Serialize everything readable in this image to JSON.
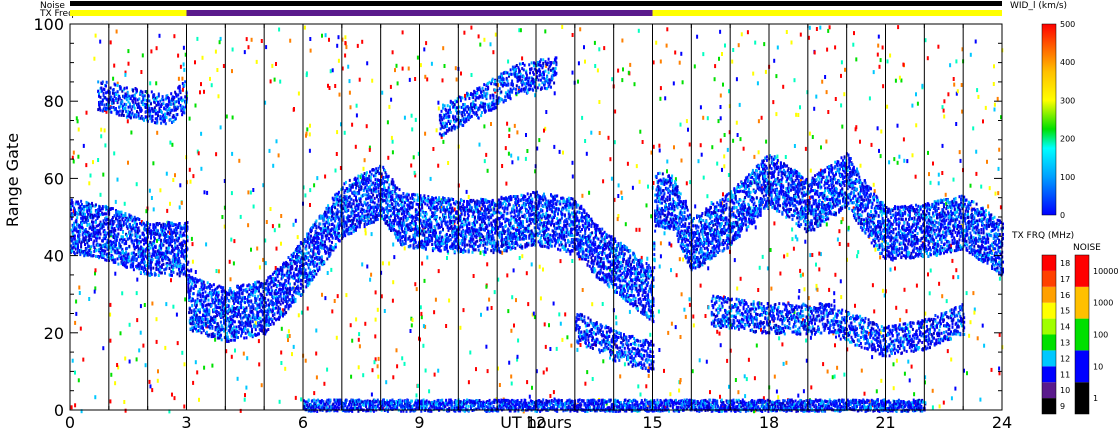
{
  "chart_data": {
    "type": "heatmap",
    "xlabel": "UT hours",
    "ylabel": "Range Gate",
    "xlim": [
      0,
      24
    ],
    "ylim": [
      0,
      100
    ],
    "x_ticks": [
      "0",
      "3",
      "6",
      "9",
      "12",
      "15",
      "18",
      "21",
      "24"
    ],
    "y_ticks": [
      "0",
      "20",
      "40",
      "60",
      "80",
      "100"
    ],
    "top_bars": {
      "noise_label": "Noise",
      "txfreq_label": "TX Freq",
      "noise_color": "#000000",
      "txfreq_segments": [
        {
          "start": 0,
          "end": 3,
          "color": "#ffff00"
        },
        {
          "start": 3,
          "end": 15,
          "color": "#5a1a8c"
        },
        {
          "start": 15,
          "end": 24,
          "color": "#ffff00"
        }
      ]
    },
    "vertical_markers_hours": [
      1,
      2,
      3,
      4,
      5,
      6,
      7,
      8,
      9,
      10,
      11,
      12,
      13,
      14,
      15,
      16,
      17,
      18,
      19,
      20,
      21,
      22,
      23
    ],
    "bands": [
      {
        "name": "main",
        "points": [
          [
            0,
            48
          ],
          [
            1,
            46
          ],
          [
            2,
            42
          ],
          [
            3,
            42
          ],
          [
            3.05,
            28
          ],
          [
            4,
            25
          ],
          [
            5,
            27
          ],
          [
            5.5,
            32
          ],
          [
            6,
            38
          ],
          [
            6.5,
            45
          ],
          [
            7,
            52
          ],
          [
            8,
            57
          ],
          [
            8.5,
            50
          ],
          [
            9,
            49
          ],
          [
            10,
            48
          ],
          [
            11,
            48
          ],
          [
            12,
            50
          ],
          [
            13,
            48
          ],
          [
            13.5,
            42
          ],
          [
            14,
            38
          ],
          [
            15,
            30
          ],
          [
            15.05,
            55
          ],
          [
            15.5,
            54
          ],
          [
            16,
            43
          ],
          [
            17,
            50
          ],
          [
            18,
            60
          ],
          [
            19,
            53
          ],
          [
            20,
            60
          ],
          [
            20.5,
            52
          ],
          [
            21,
            46
          ],
          [
            22,
            47
          ],
          [
            23,
            49
          ],
          [
            24,
            42
          ]
        ]
      },
      {
        "name": "upper",
        "points": [
          [
            0.7,
            82
          ],
          [
            1.5,
            80
          ],
          [
            2.5,
            78
          ],
          [
            3,
            82
          ]
        ]
      },
      {
        "name": "upper2",
        "points": [
          [
            9.5,
            75
          ],
          [
            10.5,
            80
          ],
          [
            11.5,
            86
          ],
          [
            12.5,
            88
          ]
        ]
      },
      {
        "name": "lower",
        "points": [
          [
            13,
            22
          ],
          [
            14,
            17
          ],
          [
            15,
            14
          ]
        ]
      },
      {
        "name": "lower2",
        "points": [
          [
            16.5,
            26
          ],
          [
            18,
            24
          ],
          [
            19.5,
            24
          ],
          [
            21,
            18
          ],
          [
            22,
            20
          ],
          [
            23,
            24
          ]
        ]
      },
      {
        "name": "ground",
        "points": [
          [
            6,
            1
          ],
          [
            9,
            1
          ],
          [
            15,
            1
          ],
          [
            18,
            1
          ],
          [
            22,
            1
          ]
        ]
      }
    ],
    "colorbars": [
      {
        "title": "WID_l (km/s)",
        "ticks": [
          "0",
          "100",
          "200",
          "300",
          "400",
          "500"
        ]
      },
      {
        "title": "TX FRQ (MHz)",
        "ticks": [
          "9",
          "10",
          "11",
          "12",
          "13",
          "14",
          "15",
          "16",
          "17",
          "18"
        ]
      },
      {
        "title": "NOISE",
        "ticks": [
          "1",
          "10",
          "100",
          "1000",
          "10000"
        ]
      }
    ]
  }
}
